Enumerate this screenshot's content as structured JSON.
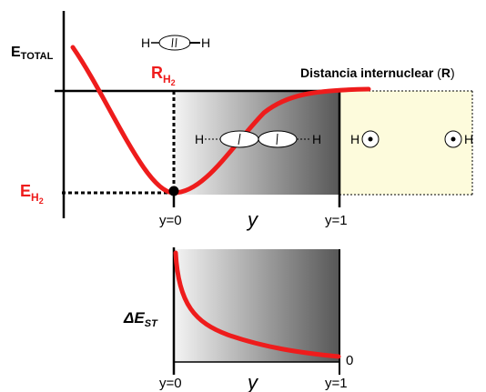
{
  "top_plot": {
    "y_axis_label_main": "E",
    "y_axis_label_sub": "TOTAL",
    "x_axis_label": "Distancia internuclear",
    "x_axis_label_paren_open": "(",
    "x_axis_label_paren_letter": "R",
    "x_axis_label_paren_close": ")",
    "equilibrium_distance_main": "R",
    "equilibrium_distance_sub": "H",
    "equilibrium_distance_subsub": "2",
    "equilibrium_energy_main": "E",
    "equilibrium_energy_sub": "H",
    "equilibrium_energy_subsub": "2",
    "tick_y0": "y=0",
    "tick_y_mid": "y",
    "tick_y1": "y=1",
    "atom_symbol": "H",
    "colors": {
      "curve": "#ee1c1c",
      "axes": "#000000",
      "dissociated_region": "#fdfbdc",
      "gradient_start": "#f2f2f2",
      "gradient_end": "#5a5a5a"
    }
  },
  "bottom_plot": {
    "y_axis_label": "ΔE",
    "y_axis_label_sub": "ST",
    "tick_y0": "y=0",
    "tick_y_mid": "y",
    "tick_y1": "y=1",
    "zero_label": "0"
  }
}
